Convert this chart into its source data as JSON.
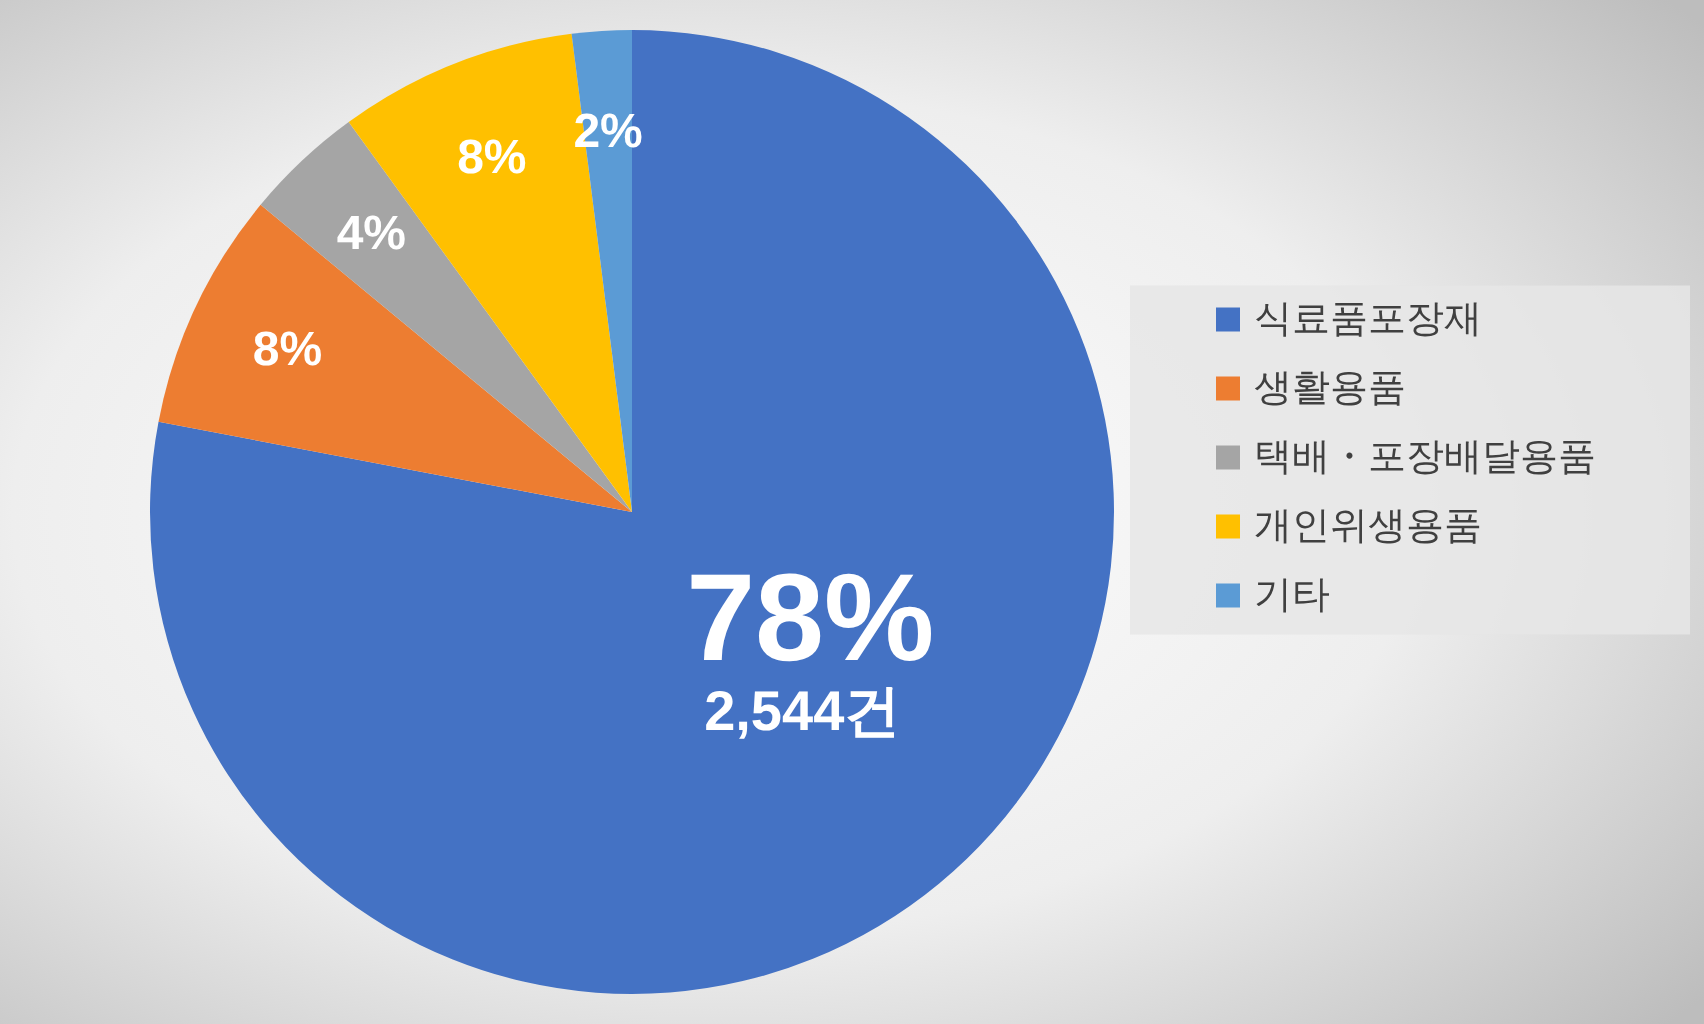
{
  "chart_data": {
    "type": "pie",
    "categories": [
      "식료품포장재",
      "생활용품",
      "택배・포장배달용품",
      "개인위생용품",
      "기타"
    ],
    "values": [
      78,
      8,
      4,
      8,
      2
    ],
    "colors": [
      "#4472c4",
      "#ed7d31",
      "#a5a5a5",
      "#ffc000",
      "#5b9bd5"
    ],
    "value_labels": [
      "78%",
      "8%",
      "4%",
      "8%",
      "2%"
    ],
    "annotations": [
      {
        "text": "2,544건",
        "x": "식료품포장재"
      }
    ],
    "legend": "right"
  }
}
